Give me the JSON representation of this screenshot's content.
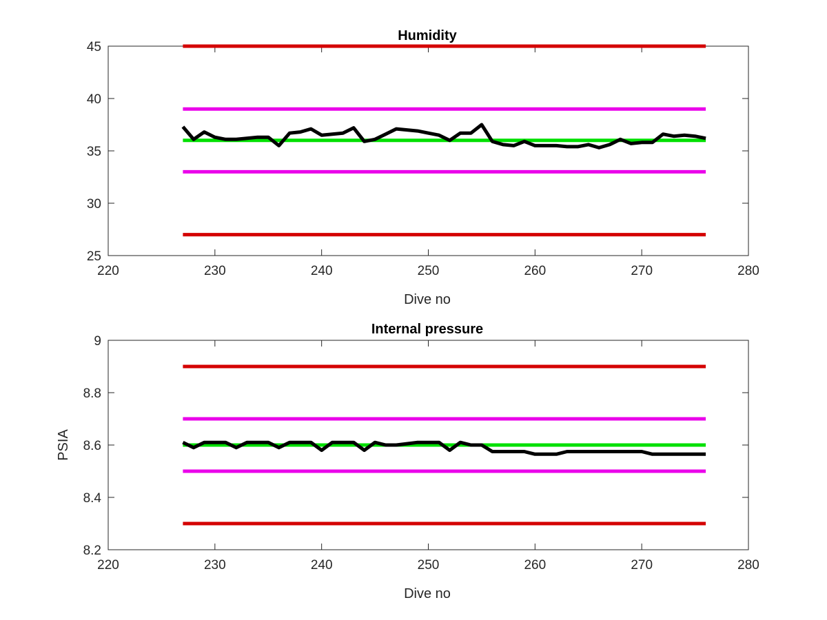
{
  "chart_data": [
    {
      "type": "line",
      "title": "Humidity",
      "xlabel": "Dive no",
      "ylabel": "",
      "xlim": [
        220,
        280
      ],
      "ylim": [
        25,
        45
      ],
      "xticks": [
        220,
        230,
        240,
        250,
        260,
        270,
        280
      ],
      "yticks": [
        25,
        30,
        35,
        40,
        45
      ],
      "xtick_labels": [
        "220",
        "230",
        "240",
        "250",
        "260",
        "270",
        "280"
      ],
      "ytick_labels": [
        "25",
        "30",
        "35",
        "40",
        "45"
      ],
      "grid": false,
      "legend": null,
      "series": [
        {
          "color": "#d40000",
          "x": [
            227,
            276
          ],
          "y": [
            45,
            45
          ]
        },
        {
          "color": "#d40000",
          "x": [
            227,
            276
          ],
          "y": [
            27,
            27
          ]
        },
        {
          "color": "#ea00ea",
          "x": [
            227,
            276
          ],
          "y": [
            39,
            39
          ]
        },
        {
          "color": "#ea00ea",
          "x": [
            227,
            276
          ],
          "y": [
            33,
            33
          ]
        },
        {
          "color": "#00e000",
          "x": [
            227,
            276
          ],
          "y": [
            36,
            36
          ]
        },
        {
          "color": "#000000",
          "x": [
            227,
            228,
            229,
            230,
            231,
            232,
            233,
            234,
            235,
            236,
            237,
            238,
            239,
            240,
            241,
            242,
            243,
            244,
            245,
            246,
            247,
            248,
            249,
            250,
            251,
            252,
            253,
            254,
            255,
            256,
            257,
            258,
            259,
            260,
            261,
            262,
            263,
            264,
            265,
            266,
            267,
            268,
            269,
            270,
            271,
            272,
            273,
            274,
            275,
            276
          ],
          "y": [
            37.3,
            36.1,
            36.8,
            36.3,
            36.1,
            36.1,
            36.2,
            36.3,
            36.3,
            35.5,
            36.7,
            36.8,
            37.1,
            36.5,
            36.6,
            36.7,
            37.2,
            35.9,
            36.1,
            36.6,
            37.1,
            37.0,
            36.9,
            36.7,
            36.5,
            36.0,
            36.7,
            36.7,
            37.5,
            35.9,
            35.6,
            35.5,
            35.9,
            35.5,
            35.5,
            35.5,
            35.4,
            35.4,
            35.6,
            35.3,
            35.6,
            36.1,
            35.7,
            35.8,
            35.8,
            36.6,
            36.4,
            36.5,
            36.4,
            36.2
          ]
        }
      ]
    },
    {
      "type": "line",
      "title": "Internal pressure",
      "xlabel": "Dive no",
      "ylabel": "PSIA",
      "xlim": [
        220,
        280
      ],
      "ylim": [
        8.2,
        9
      ],
      "xticks": [
        220,
        230,
        240,
        250,
        260,
        270,
        280
      ],
      "yticks": [
        8.2,
        8.4,
        8.6,
        8.8,
        9
      ],
      "xtick_labels": [
        "220",
        "230",
        "240",
        "250",
        "260",
        "270",
        "280"
      ],
      "ytick_labels": [
        "8.2",
        "8.4",
        "8.6",
        "8.8",
        "9"
      ],
      "grid": false,
      "legend": null,
      "series": [
        {
          "color": "#d40000",
          "x": [
            227,
            276
          ],
          "y": [
            8.9,
            8.9
          ]
        },
        {
          "color": "#d40000",
          "x": [
            227,
            276
          ],
          "y": [
            8.3,
            8.3
          ]
        },
        {
          "color": "#ea00ea",
          "x": [
            227,
            276
          ],
          "y": [
            8.7,
            8.7
          ]
        },
        {
          "color": "#ea00ea",
          "x": [
            227,
            276
          ],
          "y": [
            8.5,
            8.5
          ]
        },
        {
          "color": "#00e000",
          "x": [
            227,
            276
          ],
          "y": [
            8.6,
            8.6
          ]
        },
        {
          "color": "#000000",
          "x": [
            227,
            228,
            229,
            230,
            231,
            232,
            233,
            234,
            235,
            236,
            237,
            238,
            239,
            240,
            241,
            242,
            243,
            244,
            245,
            246,
            247,
            248,
            249,
            250,
            251,
            252,
            253,
            254,
            255,
            256,
            257,
            258,
            259,
            260,
            261,
            262,
            263,
            264,
            265,
            266,
            267,
            268,
            269,
            270,
            271,
            272,
            273,
            274,
            275,
            276
          ],
          "y": [
            8.61,
            8.59,
            8.61,
            8.61,
            8.61,
            8.59,
            8.61,
            8.61,
            8.61,
            8.59,
            8.61,
            8.61,
            8.61,
            8.58,
            8.61,
            8.61,
            8.61,
            8.58,
            8.61,
            8.6,
            8.6,
            8.605,
            8.61,
            8.61,
            8.61,
            8.58,
            8.61,
            8.6,
            8.6,
            8.575,
            8.575,
            8.575,
            8.575,
            8.565,
            8.565,
            8.565,
            8.575,
            8.575,
            8.575,
            8.575,
            8.575,
            8.575,
            8.575,
            8.575,
            8.565,
            8.565,
            8.565,
            8.565,
            8.565,
            8.565
          ]
        }
      ]
    }
  ]
}
